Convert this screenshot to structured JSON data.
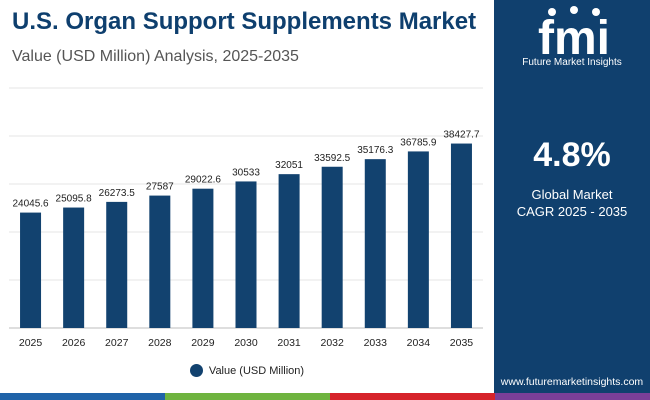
{
  "header": {
    "title": "U.S. Organ Support Supplements Market",
    "subtitle": "Value (USD Million) Analysis, 2025-2035"
  },
  "sidebar": {
    "logo_text": "fmi",
    "logo_subtext": "Future Market Insights",
    "cagr_value": "4.8%",
    "cagr_label_line1": "Global Market",
    "cagr_label_line2": "CAGR 2025 - 2035",
    "website": "www.futuremarketinsights.com"
  },
  "colors": {
    "title": "#0e3f6e",
    "bar": "#12426f",
    "sidebar_bg": "#10406e",
    "footer": [
      "#1f63a8",
      "#6fb43f",
      "#d6232a",
      "#7b3f98"
    ]
  },
  "chart_data": {
    "type": "bar",
    "title": "U.S. Organ Support Supplements Market",
    "subtitle": "Value (USD Million) Analysis, 2025-2035",
    "categories": [
      "2025",
      "2026",
      "2027",
      "2028",
      "2029",
      "2030",
      "2031",
      "2032",
      "2033",
      "2034",
      "2035"
    ],
    "series": [
      {
        "name": "Value (USD Million)",
        "values": [
          24045.6,
          25095.8,
          26273.5,
          27587,
          29022.6,
          30533,
          32051,
          33592.5,
          35176.3,
          36785.9,
          38427.7
        ],
        "labels": [
          "24045.6",
          "25095.8",
          "26273.5",
          "27587",
          "29022.6",
          "30533",
          "32051",
          "33592.5",
          "35176.3",
          "36785.9",
          "38427.7"
        ]
      }
    ],
    "xlabel": "",
    "ylabel": "",
    "ylim": [
      0,
      50000
    ],
    "grid": true,
    "legend": "bottom-center"
  }
}
